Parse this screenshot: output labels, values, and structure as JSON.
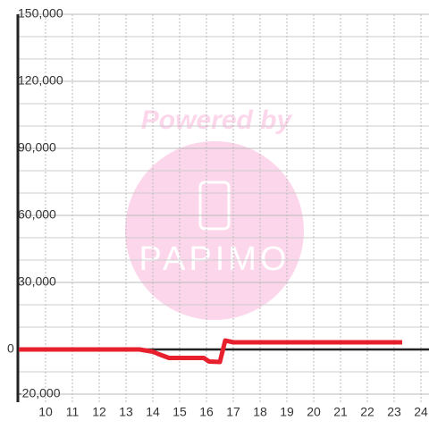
{
  "chart_data": {
    "type": "line",
    "watermark": {
      "line1": "Powered by",
      "line2": "PAPIMO"
    },
    "x": [
      9,
      13.5,
      14,
      14.2,
      14.6,
      15.9,
      16.1,
      16.5,
      16.7,
      17,
      23.3
    ],
    "series": [
      {
        "name": null,
        "color": "#e8202e",
        "values": [
          0,
          0,
          -1000,
          -2000,
          -3800,
          -3800,
          -5400,
          -5600,
          4000,
          3200,
          3200
        ]
      }
    ],
    "xlim": [
      8.967,
      24.3
    ],
    "xticks": [
      10,
      11,
      12,
      13,
      14,
      15,
      16,
      17,
      18,
      19,
      20,
      21,
      22,
      23,
      24
    ],
    "ylim": [
      -20000,
      150000
    ],
    "yticks": [
      {
        "value": -20000,
        "label": "-20,000"
      },
      0,
      {
        "value": 30000,
        "label": "30,000"
      },
      {
        "value": 60000,
        "label": "60,000"
      },
      {
        "value": 90000,
        "label": "90,000"
      },
      {
        "value": 120000,
        "label": "120,000"
      },
      {
        "value": 150000,
        "label": "150,000"
      }
    ],
    "minor_yticks": [
      -10000,
      10000,
      20000,
      40000,
      50000,
      70000,
      80000,
      100000,
      110000,
      130000,
      140000
    ],
    "grid": true
  }
}
